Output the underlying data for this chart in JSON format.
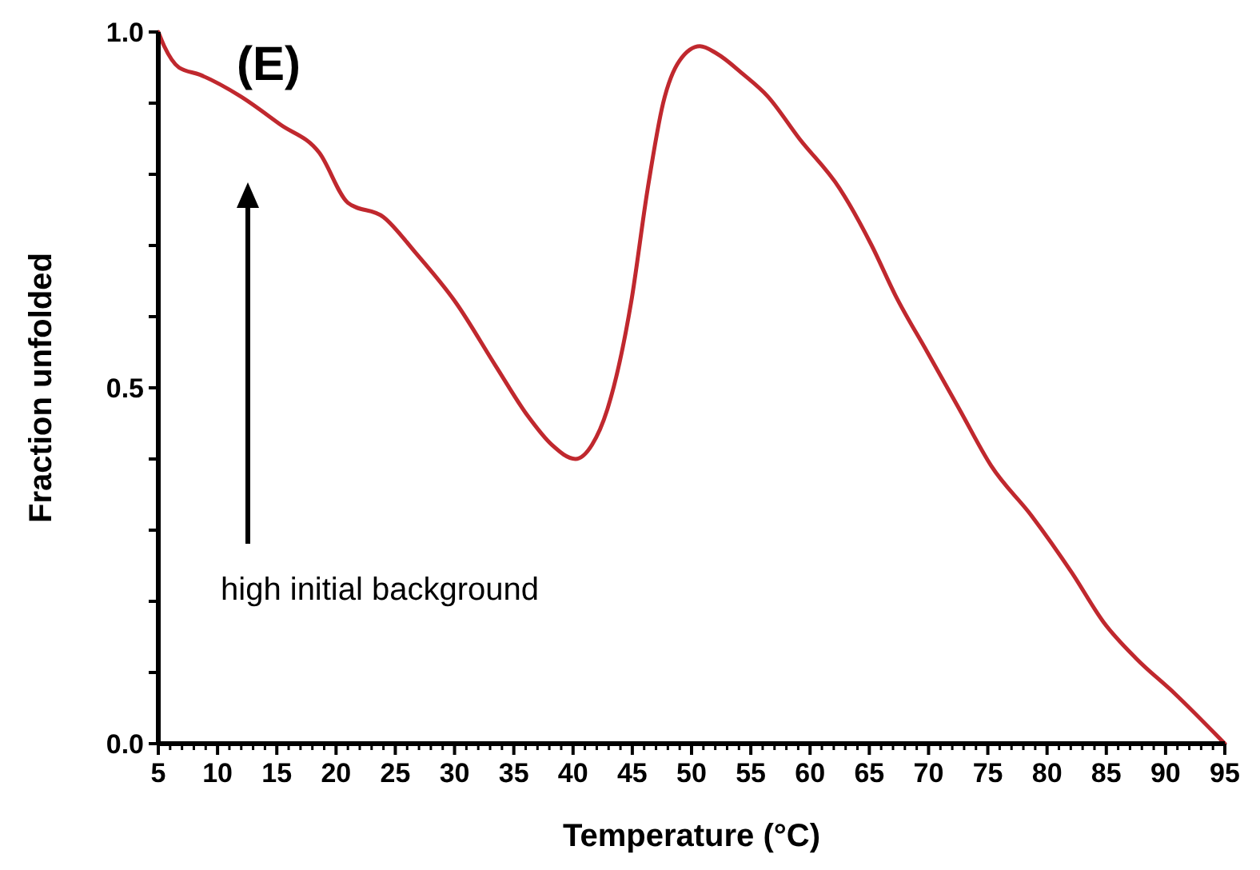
{
  "chart_data": {
    "type": "line",
    "title": "(E)",
    "xlabel": "Temperature (°C)",
    "ylabel": "Fraction unfolded",
    "x": [
      5,
      5.5,
      6.75,
      8.5,
      11.9,
      15.3,
      18.6,
      21,
      24,
      26.7,
      30.1,
      33.5,
      36.2,
      38.2,
      40.2,
      41.6,
      42.9,
      44.9,
      46.3,
      47.6,
      49,
      50.7,
      52.1,
      54.4,
      56.4,
      59.1,
      62.5,
      65.2,
      67.2,
      69.9,
      72.6,
      75.3,
      78.7,
      82.1,
      84.8,
      87.5,
      90.8,
      95
    ],
    "series": [
      {
        "color": "#c0282e",
        "values": [
          1.0,
          0.98,
          0.95,
          0.94,
          0.91,
          0.87,
          0.83,
          0.76,
          0.74,
          0.69,
          0.62,
          0.53,
          0.46,
          0.42,
          0.4,
          0.42,
          0.47,
          0.62,
          0.78,
          0.9,
          0.96,
          0.98,
          0.97,
          0.94,
          0.91,
          0.85,
          0.78,
          0.7,
          0.63,
          0.55,
          0.47,
          0.39,
          0.32,
          0.24,
          0.17,
          0.12,
          0.07,
          0.0
        ]
      }
    ],
    "xlim": [
      5,
      95
    ],
    "xticks": [
      5,
      {
        "value": 6,
        "label": null
      },
      {
        "value": 7,
        "label": null
      },
      {
        "value": 8,
        "label": null
      },
      {
        "value": 9,
        "label": null
      },
      10,
      {
        "value": 11,
        "label": null
      },
      {
        "value": 12,
        "label": null
      },
      {
        "value": 13,
        "label": null
      },
      {
        "value": 14,
        "label": null
      },
      15,
      {
        "value": 16,
        "label": null
      },
      {
        "value": 17,
        "label": null
      },
      {
        "value": 18,
        "label": null
      },
      {
        "value": 19,
        "label": null
      },
      20,
      {
        "value": 21,
        "label": null
      },
      {
        "value": 22,
        "label": null
      },
      {
        "value": 23,
        "label": null
      },
      {
        "value": 24,
        "label": null
      },
      25,
      {
        "value": 26,
        "label": null
      },
      {
        "value": 27,
        "label": null
      },
      {
        "value": 28,
        "label": null
      },
      {
        "value": 29,
        "label": null
      },
      30,
      {
        "value": 31,
        "label": null
      },
      {
        "value": 32,
        "label": null
      },
      {
        "value": 33,
        "label": null
      },
      {
        "value": 34,
        "label": null
      },
      35,
      {
        "value": 36,
        "label": null
      },
      {
        "value": 37,
        "label": null
      },
      {
        "value": 38,
        "label": null
      },
      {
        "value": 39,
        "label": null
      },
      40,
      {
        "value": 41,
        "label": null
      },
      {
        "value": 42,
        "label": null
      },
      {
        "value": 43,
        "label": null
      },
      {
        "value": 44,
        "label": null
      },
      45,
      {
        "value": 46,
        "label": null
      },
      {
        "value": 47,
        "label": null
      },
      {
        "value": 48,
        "label": null
      },
      {
        "value": 49,
        "label": null
      },
      50,
      {
        "value": 51,
        "label": null
      },
      {
        "value": 52,
        "label": null
      },
      {
        "value": 53,
        "label": null
      },
      {
        "value": 54,
        "label": null
      },
      55,
      {
        "value": 56,
        "label": null
      },
      {
        "value": 57,
        "label": null
      },
      {
        "value": 58,
        "label": null
      },
      {
        "value": 59,
        "label": null
      },
      60,
      {
        "value": 61,
        "label": null
      },
      {
        "value": 62,
        "label": null
      },
      {
        "value": 63,
        "label": null
      },
      {
        "value": 64,
        "label": null
      },
      65,
      {
        "value": 66,
        "label": null
      },
      {
        "value": 67,
        "label": null
      },
      {
        "value": 68,
        "label": null
      },
      {
        "value": 69,
        "label": null
      },
      70,
      {
        "value": 71,
        "label": null
      },
      {
        "value": 72,
        "label": null
      },
      {
        "value": 73,
        "label": null
      },
      {
        "value": 74,
        "label": null
      },
      75,
      {
        "value": 76,
        "label": null
      },
      {
        "value": 77,
        "label": null
      },
      {
        "value": 78,
        "label": null
      },
      {
        "value": 79,
        "label": null
      },
      80,
      {
        "value": 81,
        "label": null
      },
      {
        "value": 82,
        "label": null
      },
      {
        "value": 83,
        "label": null
      },
      {
        "value": 84,
        "label": null
      },
      85,
      {
        "value": 86,
        "label": null
      },
      {
        "value": 87,
        "label": null
      },
      {
        "value": 88,
        "label": null
      },
      {
        "value": 89,
        "label": null
      },
      90,
      {
        "value": 91,
        "label": null
      },
      {
        "value": 92,
        "label": null
      },
      {
        "value": 93,
        "label": null
      },
      {
        "value": 94,
        "label": null
      },
      95
    ],
    "ylim": [
      0,
      1
    ],
    "yticks": [
      {
        "value": 0,
        "label": "0.0"
      },
      {
        "value": 0.1,
        "label": null
      },
      {
        "value": 0.2,
        "label": null
      },
      {
        "value": 0.3,
        "label": null
      },
      {
        "value": 0.4,
        "label": null
      },
      0.5,
      {
        "value": 0.6,
        "label": null
      },
      {
        "value": 0.7,
        "label": null
      },
      {
        "value": 0.8,
        "label": null
      },
      {
        "value": 0.9,
        "label": null
      },
      {
        "value": 1,
        "label": "1.0"
      }
    ],
    "annotations": [
      "high initial background"
    ],
    "grid": false,
    "marker": "none",
    "line_style": "solid"
  }
}
